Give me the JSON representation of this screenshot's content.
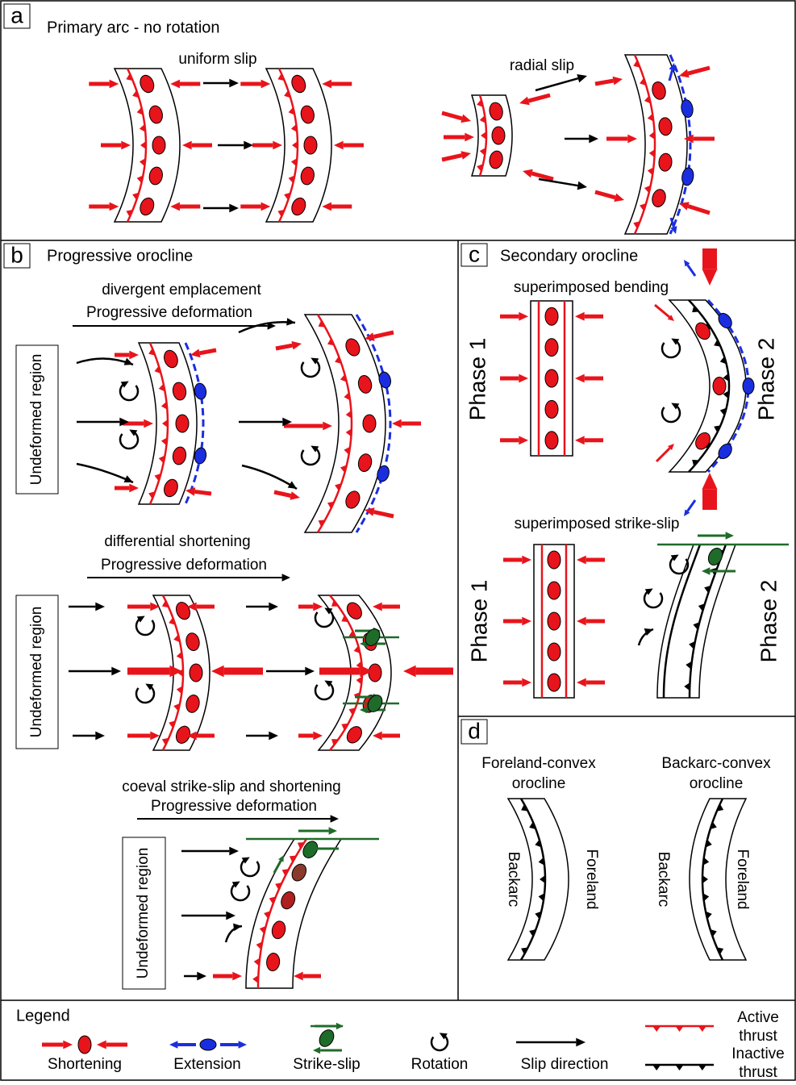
{
  "panels": {
    "a": {
      "label": "a",
      "title": "Primary arc - no rotation",
      "captions": [
        "uniform slip",
        "radial slip"
      ]
    },
    "b": {
      "label": "b",
      "title": "Progressive orocline",
      "rows": [
        {
          "title": "divergent emplacement",
          "subtitle": "Progressive deformation",
          "region": "Undeformed region"
        },
        {
          "title": "differential shortening",
          "subtitle": "Progressive deformation",
          "region": "Undeformed region"
        },
        {
          "title": "coeval strike-slip and shortening",
          "subtitle": "Progressive deformation",
          "region": "Undeformed region"
        }
      ]
    },
    "c": {
      "label": "c",
      "title": "Secondary orocline",
      "sections": [
        {
          "title": "superimposed bending",
          "phases": [
            "Phase 1",
            "Phase 2"
          ]
        },
        {
          "title": "superimposed strike-slip",
          "phases": [
            "Phase 1",
            "Phase 2"
          ]
        }
      ]
    },
    "d": {
      "label": "d",
      "items": [
        {
          "title_lines": [
            "Foreland-convex",
            "orocline"
          ],
          "left": "Backarc",
          "right": "Foreland"
        },
        {
          "title_lines": [
            "Backarc-convex",
            "orocline"
          ],
          "left": "Backarc",
          "right": "Foreland"
        }
      ]
    }
  },
  "legend": {
    "title": "Legend",
    "items": [
      "Shortening",
      "Extension",
      "Strike-slip",
      "Rotation",
      "Slip direction"
    ],
    "thrusts": [
      [
        "Active",
        "thrust"
      ],
      [
        "Inactive",
        "thrust"
      ]
    ]
  }
}
